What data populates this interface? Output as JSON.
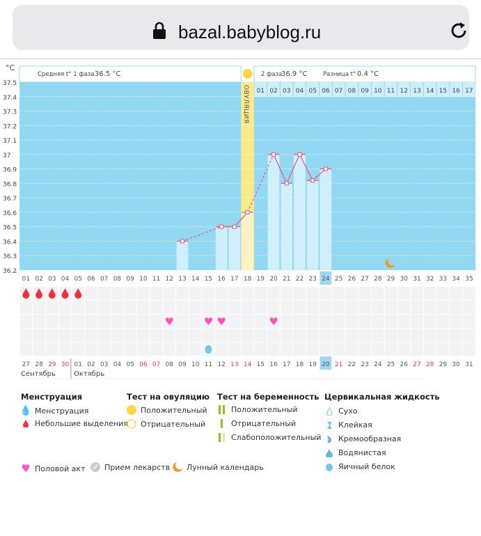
{
  "browser": {
    "url": "bazal.babyblog.ru"
  },
  "chart": {
    "unit": "°C",
    "phase1_label": "Средняя t° 1 фаза",
    "phase1_value": "36.5 °C",
    "phase2_label": "2 фаза",
    "phase2_value": "36.9 °C",
    "diff_label": "Разница t°",
    "diff_value": "0.4 °C",
    "ovulation_label": "ОВУЛЯЦИЯ",
    "ovulation_day": 18,
    "y_ticks": [
      "37.5",
      "37.4",
      "37.3",
      "37.2",
      "37.1",
      "37",
      "36.9",
      "36.8",
      "36.7",
      "36.6",
      "36.5",
      "36.4",
      "36.3",
      "36.2"
    ],
    "ylim": [
      36.2,
      37.5
    ],
    "cycle_days": [
      "01",
      "02",
      "03",
      "04",
      "05",
      "06",
      "07",
      "08",
      "09",
      "10",
      "11",
      "12",
      "13",
      "14",
      "15",
      "16",
      "17",
      "18",
      "19",
      "20",
      "21",
      "22",
      "23",
      "24",
      "25",
      "26",
      "27",
      "28",
      "29",
      "30",
      "31",
      "32",
      "33",
      "34",
      "35"
    ],
    "phase2_days": [
      "01",
      "02",
      "03",
      "04",
      "05",
      "06",
      "07",
      "08",
      "09",
      "10",
      "11",
      "12",
      "13",
      "14",
      "15",
      "16",
      "17"
    ],
    "current_day": 24,
    "temps": [
      {
        "day": 13,
        "t": 36.4
      },
      {
        "day": 16,
        "t": 36.5
      },
      {
        "day": 17,
        "t": 36.5
      },
      {
        "day": 18,
        "t": 36.6
      },
      {
        "day": 20,
        "t": 37.0
      },
      {
        "day": 21,
        "t": 36.8
      },
      {
        "day": 22,
        "t": 37.0
      },
      {
        "day": 23,
        "t": 36.82
      },
      {
        "day": 24,
        "t": 36.9
      }
    ],
    "moon_day": 29,
    "menstruation_days": [
      1,
      2,
      3,
      4,
      5
    ],
    "intercourse_days": [
      12,
      15,
      16,
      20
    ],
    "fluid_days": [
      15
    ],
    "dates": [
      "27",
      "28",
      "29",
      "30",
      "01",
      "02",
      "03",
      "04",
      "05",
      "06",
      "07",
      "08",
      "09",
      "10",
      "11",
      "12",
      "13",
      "14",
      "15",
      "16",
      "17",
      "18",
      "19",
      "20",
      "21",
      "22",
      "23",
      "24",
      "25",
      "26",
      "27",
      "28",
      "29",
      "30",
      "31"
    ],
    "weekend_idx": [
      2,
      3,
      9,
      10,
      16,
      17,
      24,
      30,
      31
    ],
    "months": [
      "Сентябрь",
      "Октябрь"
    ],
    "colors": {
      "bg": "#93d8f3",
      "bar": "#d0effc",
      "ovulation": "#fbe98c",
      "line": "#e8557f",
      "accent": "#9fd8f0",
      "weekend": "#e8336b"
    }
  },
  "legend": {
    "menstruation": {
      "title": "Менструация",
      "items": [
        "Менструация",
        "Небольшие выделения"
      ]
    },
    "ovulation_test": {
      "title": "Тест на овуляцию",
      "items": [
        "Положительный",
        "Отрицательный"
      ]
    },
    "pregnancy_test": {
      "title": "Тест на беременность",
      "items": [
        "Положительный",
        "Отрицательный",
        "Слабоположительный"
      ]
    },
    "cervical": {
      "title": "Цервикальная жидкость",
      "items": [
        "Сухо",
        "Клейкая",
        "Кремообразная",
        "Водянистая",
        "Яичный белок"
      ]
    },
    "other": [
      "Половой акт",
      "Прием лекарств",
      "Лунный календарь"
    ]
  }
}
